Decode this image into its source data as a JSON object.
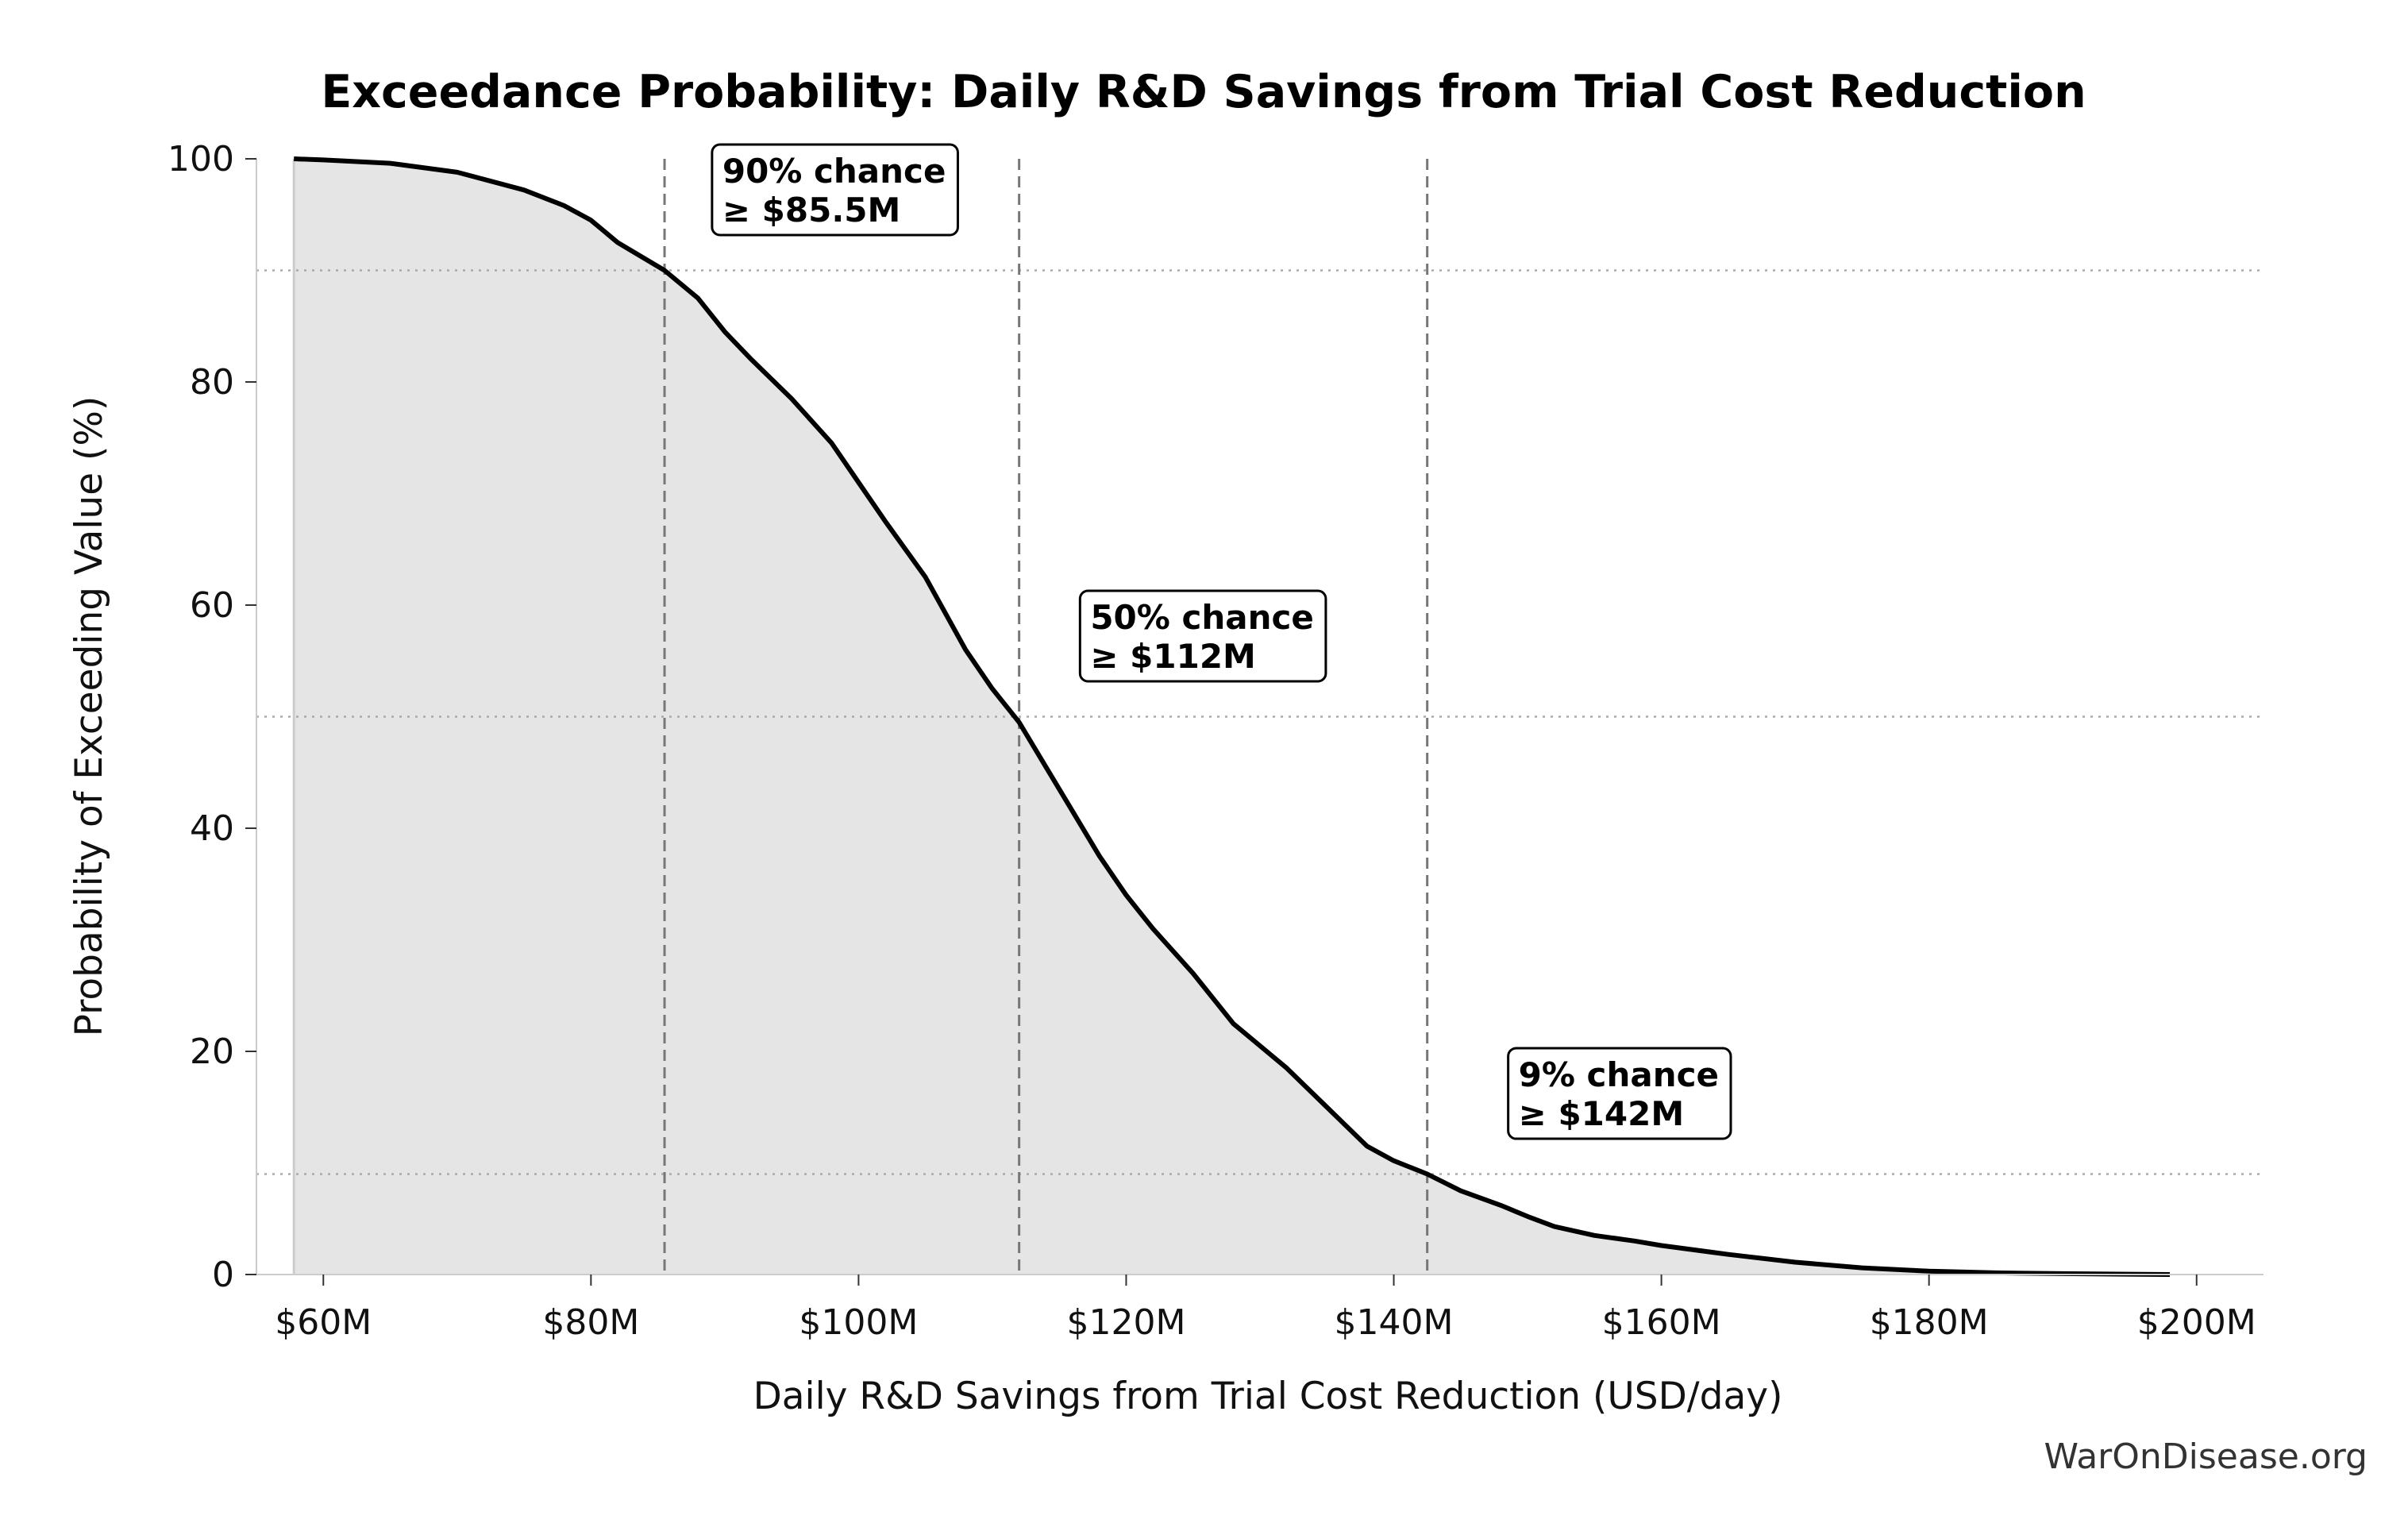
{
  "chart_data": {
    "type": "area",
    "title": "Exceedance Probability: Daily R&D Savings from Trial Cost Reduction",
    "xlabel": "Daily R&D Savings from Trial Cost Reduction (USD/day)",
    "ylabel": "Probability of Exceeding Value (%)",
    "xlim": [
      55,
      205
    ],
    "ylim": [
      0,
      100
    ],
    "x_ticks": [
      60,
      80,
      100,
      120,
      140,
      160,
      180,
      200
    ],
    "x_tick_labels": [
      "$60M",
      "$80M",
      "$100M",
      "$120M",
      "$140M",
      "$160M",
      "$180M",
      "$200M"
    ],
    "y_ticks": [
      0,
      20,
      40,
      60,
      80,
      100
    ],
    "y_tick_labels": [
      "0",
      "20",
      "40",
      "60",
      "80",
      "100"
    ],
    "grid": false,
    "series": [
      {
        "x": [
          57.8,
          60,
          65,
          70,
          75,
          78,
          80,
          82,
          85.5,
          88,
          90,
          92,
          95,
          98,
          100,
          102,
          105,
          108,
          110,
          112,
          114,
          116,
          118,
          120,
          122,
          125,
          128,
          130,
          132,
          135,
          138,
          140,
          142.5,
          145,
          148,
          150,
          152,
          155,
          158,
          160,
          165,
          170,
          175,
          180,
          185,
          190,
          195,
          198
        ],
        "y": [
          100,
          99.9,
          99.6,
          98.8,
          97.2,
          95.8,
          94.5,
          92.5,
          90,
          87.5,
          84.5,
          82,
          78.5,
          74.5,
          71,
          67.5,
          62.5,
          56,
          52.5,
          49.5,
          45.5,
          41.5,
          37.5,
          34,
          31,
          27,
          22.5,
          20.5,
          18.5,
          15,
          11.5,
          10.2,
          9,
          7.5,
          6.2,
          5.2,
          4.3,
          3.5,
          3,
          2.6,
          1.8,
          1.1,
          0.6,
          0.3,
          0.15,
          0.08,
          0.03,
          0
        ],
        "color": "#000000",
        "fill": "#e5e5e5"
      }
    ],
    "reference_lines": [
      {
        "x": 85.5,
        "y": 90
      },
      {
        "x": 112,
        "y": 50
      },
      {
        "x": 142.5,
        "y": 9
      }
    ],
    "annotations": [
      {
        "line1": "90% chance",
        "line2": "≥ $85.5M",
        "x": 90,
        "y": 100
      },
      {
        "line1": "50% chance",
        "line2": "≥ $112M",
        "x": 117.5,
        "y": 60
      },
      {
        "line1": "9% chance",
        "line2": "≥ $142M",
        "x": 149.5,
        "y": 19
      }
    ]
  },
  "credit": "WarOnDisease.org"
}
